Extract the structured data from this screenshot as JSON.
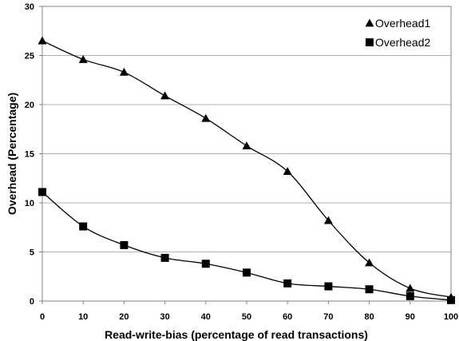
{
  "chart_data": {
    "type": "line",
    "title": "",
    "xlabel": "Read-write-bias (percentage of read transactions)",
    "ylabel": "Overhead  (Percentage)",
    "x": [
      0,
      10,
      20,
      30,
      40,
      50,
      60,
      70,
      80,
      90,
      100
    ],
    "xlim": [
      0,
      100
    ],
    "ylim": [
      0,
      30
    ],
    "x_ticks": [
      "0",
      "10",
      "20",
      "30",
      "40",
      "50",
      "60",
      "70",
      "80",
      "90",
      "100"
    ],
    "y_ticks": [
      "0",
      "5",
      "10",
      "15",
      "20",
      "25",
      "30"
    ],
    "grid": "horizontal",
    "legend_position": "top-right",
    "series": [
      {
        "name": "Overhead1",
        "marker": "triangle",
        "color": "#000000",
        "values": [
          26.5,
          24.6,
          23.3,
          20.9,
          18.6,
          15.8,
          13.2,
          8.2,
          3.9,
          1.3,
          0.4
        ]
      },
      {
        "name": "Overhead2",
        "marker": "square",
        "color": "#000000",
        "values": [
          11.1,
          7.6,
          5.7,
          4.4,
          3.8,
          2.9,
          1.8,
          1.5,
          1.2,
          0.5,
          0.1
        ]
      }
    ]
  }
}
